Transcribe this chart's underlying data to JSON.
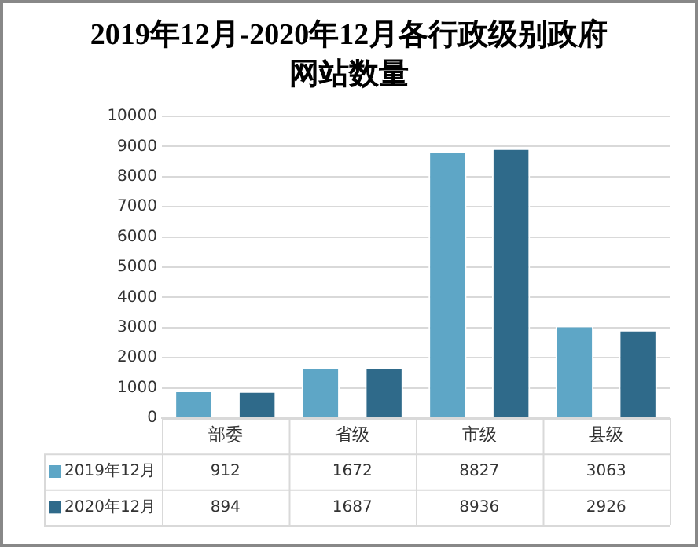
{
  "chart_data": {
    "type": "bar",
    "title": "2019年12月-2020年12月各行政级别政府网站数量",
    "categories": [
      "部委",
      "省级",
      "市级",
      "县级"
    ],
    "series": [
      {
        "name": "2019年12月",
        "color": "#5ea6c6",
        "values": [
          912,
          1672,
          8827,
          3063
        ]
      },
      {
        "name": "2020年12月",
        "color": "#2f6a8a",
        "values": [
          894,
          1687,
          8936,
          2926
        ]
      }
    ],
    "ylim": [
      0,
      10000
    ],
    "yticks": [
      0,
      1000,
      2000,
      3000,
      4000,
      5000,
      6000,
      7000,
      8000,
      9000,
      10000
    ],
    "grid": "y",
    "legend": "bottom",
    "data_labels": true
  }
}
